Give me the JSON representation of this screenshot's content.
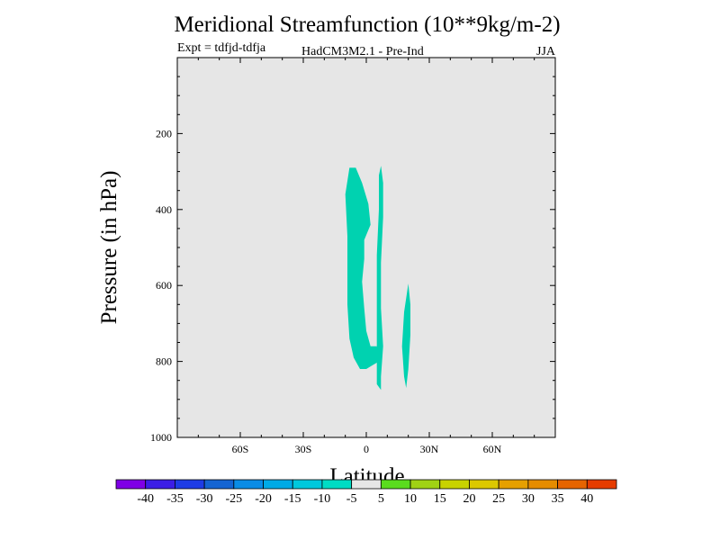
{
  "chart_data": {
    "type": "heatmap",
    "title": "Meridional Streamfunction (10**9kg/m-2)",
    "experiment": "Expt = tdfjd-tdfja",
    "model": "HadCM3M2.1 - Pre-Ind",
    "season": "JJA",
    "xlabel": "Latitude",
    "ylabel": "Pressure (in hPa)",
    "xlim": [
      -90,
      90
    ],
    "ylim": [
      1000,
      0
    ],
    "x_ticks": [
      {
        "value": -60,
        "label": "60S"
      },
      {
        "value": -30,
        "label": "30S"
      },
      {
        "value": 0,
        "label": "0"
      },
      {
        "value": 30,
        "label": "30N"
      },
      {
        "value": 60,
        "label": "60N"
      }
    ],
    "y_ticks": [
      {
        "value": 200,
        "label": "200"
      },
      {
        "value": 400,
        "label": "400"
      },
      {
        "value": 600,
        "label": "600"
      },
      {
        "value": 800,
        "label": "800"
      },
      {
        "value": 1000,
        "label": "1000"
      }
    ],
    "background_color": "#e6e6e6",
    "regions": [
      {
        "name": "region-equatorial-band",
        "level_bin": "-10 to -5",
        "color": "#00d2b0",
        "points": [
          [
            -8,
            290
          ],
          [
            -5,
            290
          ],
          [
            -2,
            330
          ],
          [
            1,
            385
          ],
          [
            2,
            440
          ],
          [
            -1,
            480
          ],
          [
            -1,
            530
          ],
          [
            -2,
            590
          ],
          [
            -1,
            660
          ],
          [
            0,
            720
          ],
          [
            2,
            760
          ],
          [
            5,
            760
          ],
          [
            6,
            800
          ],
          [
            3,
            810
          ],
          [
            0,
            820
          ],
          [
            -3,
            820
          ],
          [
            -6,
            790
          ],
          [
            -8,
            740
          ],
          [
            -9,
            650
          ],
          [
            -9,
            560
          ],
          [
            -9,
            470
          ],
          [
            -10,
            360
          ]
        ]
      },
      {
        "name": "region-6n-band",
        "level_bin": "-10 to -5",
        "color": "#00d2b0",
        "points": [
          [
            7,
            285
          ],
          [
            8,
            330
          ],
          [
            8,
            420
          ],
          [
            7,
            540
          ],
          [
            7,
            660
          ],
          [
            8,
            760
          ],
          [
            7,
            840
          ],
          [
            7,
            875
          ],
          [
            5,
            860
          ],
          [
            5,
            770
          ],
          [
            5,
            650
          ],
          [
            5,
            520
          ],
          [
            6,
            400
          ],
          [
            6,
            310
          ]
        ]
      },
      {
        "name": "region-20n-band",
        "level_bin": "-10 to -5",
        "color": "#00d2b0",
        "points": [
          [
            20,
            595
          ],
          [
            21,
            650
          ],
          [
            21,
            730
          ],
          [
            20,
            820
          ],
          [
            19,
            870
          ],
          [
            18,
            840
          ],
          [
            17,
            760
          ],
          [
            18,
            670
          ]
        ]
      }
    ],
    "colorbar": {
      "colors": [
        "#7f00e6",
        "#3c1ee6",
        "#1e3ce6",
        "#1464d2",
        "#0a8ce6",
        "#00aae6",
        "#00c8dc",
        "#00dcc4",
        "#e6e6e6",
        "#5adc1e",
        "#a0d214",
        "#c8d200",
        "#dcc800",
        "#e6a000",
        "#e68c00",
        "#e66400",
        "#e63c00"
      ],
      "labels": [
        "-40",
        "-35",
        "-30",
        "-25",
        "-20",
        "-15",
        "-10",
        "-5",
        "5",
        "10",
        "15",
        "20",
        "25",
        "30",
        "35",
        "40"
      ]
    }
  }
}
